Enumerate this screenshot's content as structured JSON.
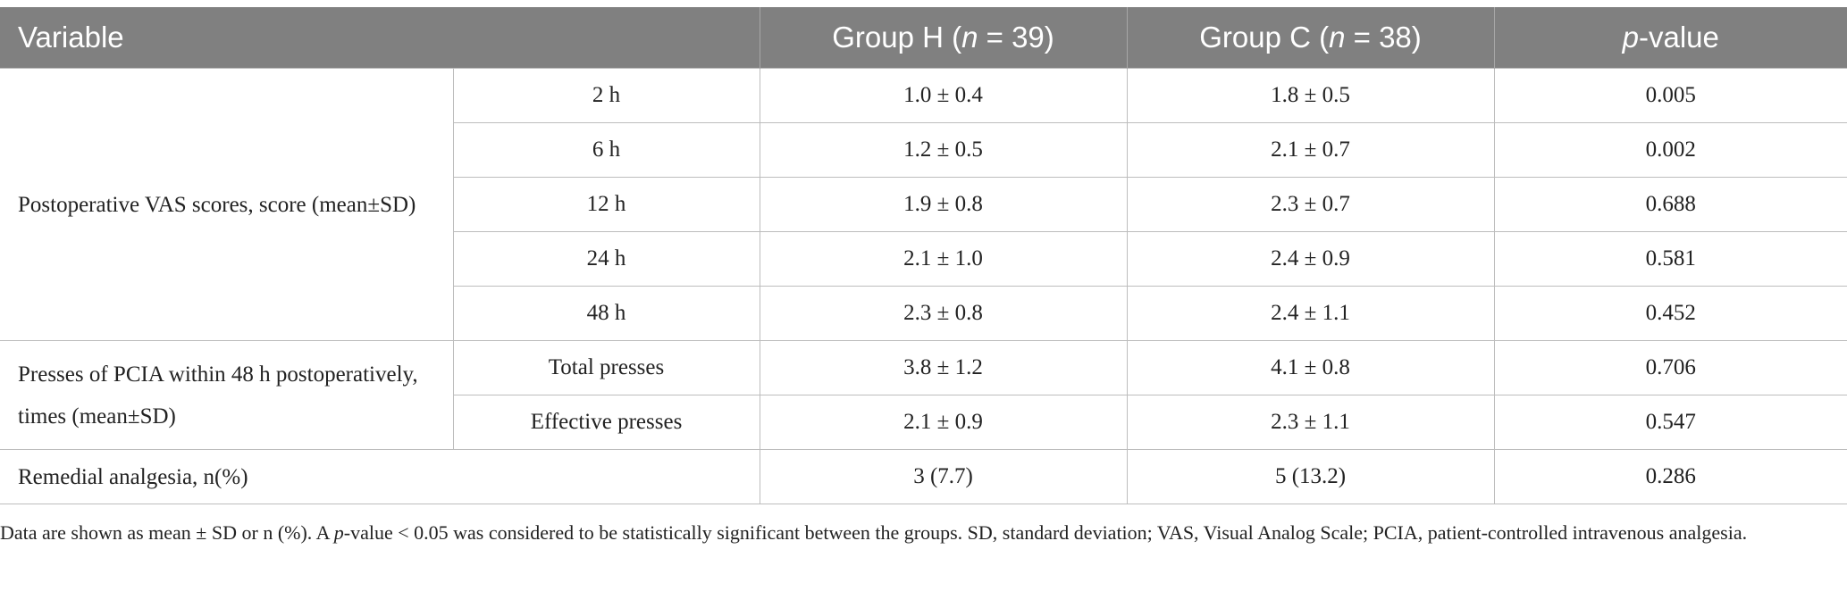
{
  "header": {
    "variable": "Variable",
    "group_h_prefix": "Group H (",
    "group_h_n": "n",
    "group_h_suffix": " = 39)",
    "group_c_prefix": "Group C (",
    "group_c_n": "n",
    "group_c_suffix": " = 38)",
    "p_italic": "p",
    "p_suffix": "-value"
  },
  "vas": {
    "label": "Postoperative VAS scores, score (mean±SD)",
    "rows": [
      {
        "time": "2 h",
        "h": "1.0 ± 0.4",
        "c": "1.8 ± 0.5",
        "p": "0.005"
      },
      {
        "time": "6 h",
        "h": "1.2 ± 0.5",
        "c": "2.1 ± 0.7",
        "p": "0.002"
      },
      {
        "time": "12 h",
        "h": "1.9 ± 0.8",
        "c": "2.3 ± 0.7",
        "p": "0.688"
      },
      {
        "time": "24 h",
        "h": "2.1 ± 1.0",
        "c": "2.4 ± 0.9",
        "p": "0.581"
      },
      {
        "time": "48 h",
        "h": "2.3 ± 0.8",
        "c": "2.4 ± 1.1",
        "p": "0.452"
      }
    ]
  },
  "pcia": {
    "label": "Presses of PCIA within 48 h postoperatively, times (mean±SD)",
    "rows": [
      {
        "type": "Total presses",
        "h": "3.8 ± 1.2",
        "c": "4.1 ± 0.8",
        "p": "0.706"
      },
      {
        "type": "Effective presses",
        "h": "2.1 ± 0.9",
        "c": "2.3 ± 1.1",
        "p": "0.547"
      }
    ]
  },
  "remedial": {
    "label": "Remedial analgesia, n(%)",
    "h": "3 (7.7)",
    "c": "5 (13.2)",
    "p": "0.286"
  },
  "note": {
    "part1": "Data are shown as mean ± SD or n (%). A ",
    "p_italic": "p",
    "part2": "-value < 0.05 was considered to be statistically significant between the groups. SD, standard deviation; VAS, Visual Analog Scale; PCIA, patient-controlled intravenous analgesia."
  }
}
